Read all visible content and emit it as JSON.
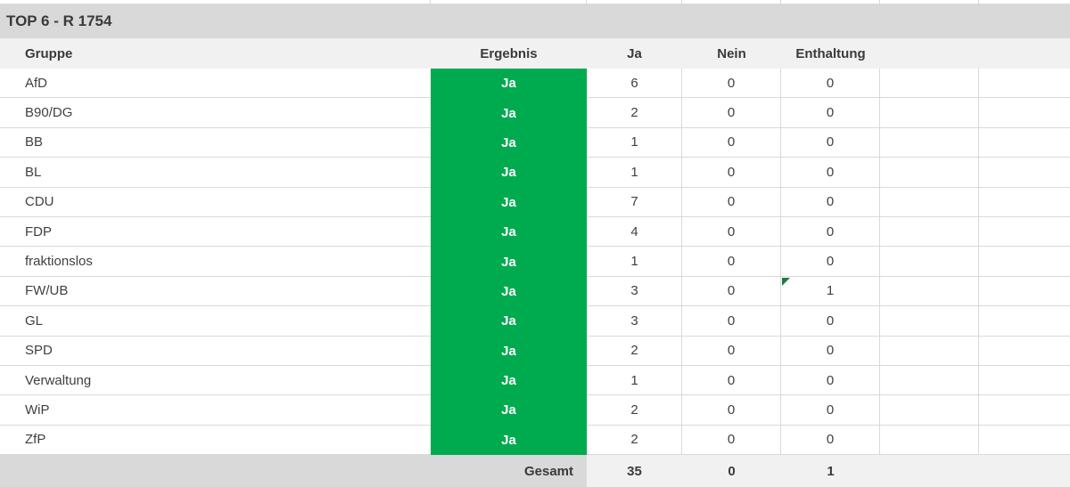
{
  "title": "TOP 6 - R 1754",
  "table": {
    "headers": {
      "gruppe": "Gruppe",
      "ergebnis": "Ergebnis",
      "ja": "Ja",
      "nein": "Nein",
      "enthaltung": "Enthaltung"
    },
    "rows": [
      {
        "gruppe": "AfD",
        "ergebnis": "Ja",
        "ja": "6",
        "nein": "0",
        "enthaltung": "0",
        "flag": false
      },
      {
        "gruppe": "B90/DG",
        "ergebnis": "Ja",
        "ja": "2",
        "nein": "0",
        "enthaltung": "0",
        "flag": false
      },
      {
        "gruppe": "BB",
        "ergebnis": "Ja",
        "ja": "1",
        "nein": "0",
        "enthaltung": "0",
        "flag": false
      },
      {
        "gruppe": "BL",
        "ergebnis": "Ja",
        "ja": "1",
        "nein": "0",
        "enthaltung": "0",
        "flag": false
      },
      {
        "gruppe": "CDU",
        "ergebnis": "Ja",
        "ja": "7",
        "nein": "0",
        "enthaltung": "0",
        "flag": false
      },
      {
        "gruppe": "FDP",
        "ergebnis": "Ja",
        "ja": "4",
        "nein": "0",
        "enthaltung": "0",
        "flag": false
      },
      {
        "gruppe": "fraktionslos",
        "ergebnis": "Ja",
        "ja": "1",
        "nein": "0",
        "enthaltung": "0",
        "flag": false
      },
      {
        "gruppe": "FW/UB",
        "ergebnis": "Ja",
        "ja": "3",
        "nein": "0",
        "enthaltung": "1",
        "flag": true
      },
      {
        "gruppe": "GL",
        "ergebnis": "Ja",
        "ja": "3",
        "nein": "0",
        "enthaltung": "0",
        "flag": false
      },
      {
        "gruppe": "SPD",
        "ergebnis": "Ja",
        "ja": "2",
        "nein": "0",
        "enthaltung": "0",
        "flag": false
      },
      {
        "gruppe": "Verwaltung",
        "ergebnis": "Ja",
        "ja": "1",
        "nein": "0",
        "enthaltung": "0",
        "flag": false
      },
      {
        "gruppe": "WiP",
        "ergebnis": "Ja",
        "ja": "2",
        "nein": "0",
        "enthaltung": "0",
        "flag": false
      },
      {
        "gruppe": "ZfP",
        "ergebnis": "Ja",
        "ja": "2",
        "nein": "0",
        "enthaltung": "0",
        "flag": false
      }
    ],
    "total": {
      "label": "Gesamt",
      "ja": "35",
      "nein": "0",
      "enthaltung": "1"
    }
  },
  "icons": {
    "cell_flag": "cell-error-flag-icon"
  },
  "colors": {
    "result_green": "#00ab4f",
    "flag_green": "#1e7b3f",
    "title_bar_gray": "#d9d9d9",
    "header_row_gray": "#f1f1f1",
    "gridline_gray": "#d9d9d9",
    "text_dark": "#3a3a3a"
  }
}
